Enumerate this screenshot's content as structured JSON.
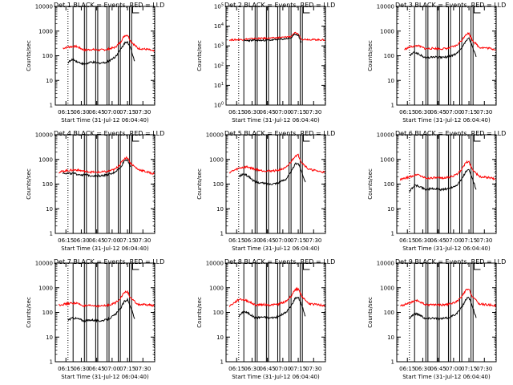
{
  "chart_data": [
    {
      "panel_title": "Det 1",
      "title": "Det 1 BLACK = Events, RED = LLD",
      "type": "line",
      "yscale": "log",
      "ylim": [
        1,
        10000
      ],
      "ylabel": "Counts/sec",
      "x_ticks": [
        "06:15",
        "06:30",
        "06:45",
        "07:00",
        "07:15",
        "07:30"
      ],
      "xlabel": "Start Time (31-Jul-12 06:04:40)",
      "y_ticks": [
        "1",
        "10",
        "100",
        "1000",
        "10000"
      ],
      "vlines": [
        "06:22",
        "06:33",
        "06:35",
        "06:44",
        "06:46",
        "06:55",
        "06:57",
        "07:06",
        "07:08",
        "07:17",
        "07:19"
      ],
      "dotted_vlines": [
        "06:17",
        "07:41"
      ],
      "series": [
        {
          "name": "BLACK = Events",
          "color": "#000000",
          "x": [
            "06:17",
            "06:22",
            "06:27",
            "06:33",
            "06:40",
            "06:47",
            "06:55",
            "07:03",
            "07:08",
            "07:12",
            "07:15",
            "07:18",
            "07:22"
          ],
          "values": [
            55,
            70,
            55,
            45,
            55,
            50,
            55,
            90,
            170,
            320,
            380,
            200,
            60
          ]
        },
        {
          "name": "RED = LLD",
          "color": "#ff0000",
          "x": [
            "06:12",
            "06:18",
            "06:25",
            "06:33",
            "06:40",
            "06:47",
            "06:55",
            "07:03",
            "07:08",
            "07:12",
            "07:15",
            "07:18",
            "07:25",
            "07:35",
            "07:41"
          ],
          "values": [
            200,
            230,
            240,
            170,
            180,
            170,
            180,
            220,
            350,
            650,
            700,
            400,
            200,
            180,
            150
          ]
        }
      ]
    },
    {
      "panel_title": "Det 2",
      "title": "Det 2 BLACK = Events, RED = LLD",
      "type": "line",
      "yscale": "log",
      "ylim": [
        1,
        100000
      ],
      "ylabel": "Counts/sec",
      "x_ticks": [
        "06:15",
        "06:30",
        "06:45",
        "07:00",
        "07:15",
        "07:30"
      ],
      "xlabel": "Start Time (31-Jul-12 06:04:40)",
      "y_ticks": [
        "10^0",
        "10^1",
        "10^2",
        "10^3",
        "10^4",
        "10^5"
      ],
      "vlines": [
        "06:22",
        "06:33",
        "06:35",
        "06:44",
        "06:46",
        "06:55",
        "06:57",
        "07:06",
        "07:08",
        "07:17",
        "07:19"
      ],
      "dotted_vlines": [
        "06:17",
        "07:41"
      ],
      "series": [
        {
          "name": "BLACK = Events",
          "color": "#000000",
          "x": [
            "06:22",
            "06:30",
            "06:40",
            "06:50",
            "07:00",
            "07:08",
            "07:12",
            "07:15",
            "07:18"
          ],
          "values": [
            1800,
            1900,
            1900,
            2000,
            2200,
            2500,
            4000,
            3500,
            1500
          ]
        },
        {
          "name": "RED = LLD",
          "color": "#ff0000",
          "x": [
            "06:08",
            "06:20",
            "06:30",
            "06:40",
            "06:50",
            "07:00",
            "07:08",
            "07:12",
            "07:15",
            "07:18",
            "07:28",
            "07:41"
          ],
          "values": [
            2000,
            2100,
            2300,
            2400,
            2500,
            2700,
            3000,
            4500,
            4000,
            2200,
            2100,
            2000
          ]
        }
      ]
    },
    {
      "panel_title": "Det 3",
      "title": "Det 3 BLACK = Events, RED = LLD",
      "type": "line",
      "yscale": "log",
      "ylim": [
        1,
        10000
      ],
      "ylabel": "Counts/sec",
      "x_ticks": [
        "06:15",
        "06:30",
        "06:45",
        "07:00",
        "07:15",
        "07:30"
      ],
      "xlabel": "Start Time (31-Jul-12 06:04:40)",
      "y_ticks": [
        "1",
        "10",
        "100",
        "1000",
        "10000"
      ],
      "vlines": [
        "06:22",
        "06:33",
        "06:35",
        "06:44",
        "06:46",
        "06:55",
        "06:57",
        "07:06",
        "07:08",
        "07:17",
        "07:19"
      ],
      "dotted_vlines": [
        "06:17",
        "07:41"
      ],
      "series": [
        {
          "name": "BLACK = Events",
          "color": "#000000",
          "x": [
            "06:17",
            "06:22",
            "06:27",
            "06:33",
            "06:40",
            "06:47",
            "06:55",
            "07:03",
            "07:08",
            "07:12",
            "07:15",
            "07:18",
            "07:22"
          ],
          "values": [
            100,
            140,
            110,
            80,
            90,
            85,
            90,
            120,
            200,
            400,
            500,
            250,
            90
          ]
        },
        {
          "name": "RED = LLD",
          "color": "#ff0000",
          "x": [
            "06:12",
            "06:18",
            "06:25",
            "06:33",
            "06:40",
            "06:47",
            "06:55",
            "07:03",
            "07:08",
            "07:12",
            "07:15",
            "07:18",
            "07:25",
            "07:35",
            "07:41"
          ],
          "values": [
            180,
            230,
            260,
            190,
            200,
            190,
            200,
            260,
            420,
            750,
            800,
            450,
            220,
            200,
            180
          ]
        }
      ]
    },
    {
      "panel_title": "Det 4",
      "title": "Det 4 BLACK = Events, RED = LLD",
      "type": "line",
      "yscale": "log",
      "ylim": [
        1,
        10000
      ],
      "ylabel": "Counts/sec",
      "x_ticks": [
        "06:15",
        "06:30",
        "06:45",
        "07:00",
        "07:15",
        "07:30"
      ],
      "xlabel": "Start Time (31-Jul-12 06:04:40)",
      "y_ticks": [
        "1",
        "10",
        "100",
        "1000",
        "10000"
      ],
      "vlines": [
        "06:22",
        "06:33",
        "06:35",
        "06:44",
        "06:46",
        "06:55",
        "06:57",
        "07:06",
        "07:08",
        "07:17",
        "07:19"
      ],
      "dotted_vlines": [
        "06:17",
        "07:41"
      ],
      "series": [
        {
          "name": "BLACK = Events",
          "color": "#000000",
          "x": [
            "06:12",
            "06:20",
            "06:30",
            "06:40",
            "06:50",
            "07:00",
            "07:08",
            "07:12",
            "07:15",
            "07:18"
          ],
          "values": [
            280,
            270,
            240,
            220,
            220,
            260,
            450,
            900,
            1000,
            500
          ]
        },
        {
          "name": "RED = LLD",
          "color": "#ff0000",
          "x": [
            "06:08",
            "06:15",
            "06:25",
            "06:35",
            "06:45",
            "06:55",
            "07:03",
            "07:08",
            "07:12",
            "07:15",
            "07:18",
            "07:25",
            "07:35",
            "07:41"
          ],
          "values": [
            300,
            350,
            380,
            320,
            300,
            320,
            400,
            650,
            1100,
            1200,
            700,
            400,
            300,
            260
          ]
        }
      ]
    },
    {
      "panel_title": "Det 5",
      "title": "Det 5 BLACK = Events, RED = LLD",
      "type": "line",
      "yscale": "log",
      "ylim": [
        1,
        10000
      ],
      "ylabel": "Counts/sec",
      "x_ticks": [
        "06:15",
        "06:30",
        "06:45",
        "07:00",
        "07:15",
        "07:30"
      ],
      "xlabel": "Start Time (31-Jul-12 06:04:40)",
      "y_ticks": [
        "1",
        "10",
        "100",
        "1000",
        "10000"
      ],
      "vlines": [
        "06:22",
        "06:33",
        "06:35",
        "06:44",
        "06:46",
        "06:55",
        "06:57",
        "07:06",
        "07:08",
        "07:17",
        "07:19"
      ],
      "dotted_vlines": [
        "06:17",
        "07:41"
      ],
      "series": [
        {
          "name": "BLACK = Events",
          "color": "#000000",
          "x": [
            "06:17",
            "06:22",
            "06:27",
            "06:33",
            "06:40",
            "06:47",
            "06:55",
            "07:03",
            "07:08",
            "07:12",
            "07:15",
            "07:18",
            "07:22"
          ],
          "values": [
            200,
            260,
            200,
            120,
            110,
            100,
            110,
            160,
            300,
            650,
            700,
            350,
            120
          ]
        },
        {
          "name": "RED = LLD",
          "color": "#ff0000",
          "x": [
            "06:08",
            "06:18",
            "06:25",
            "06:33",
            "06:40",
            "06:47",
            "06:55",
            "07:03",
            "07:08",
            "07:12",
            "07:15",
            "07:18",
            "07:25",
            "07:35",
            "07:41"
          ],
          "values": [
            300,
            450,
            500,
            400,
            350,
            340,
            360,
            450,
            800,
            1400,
            1500,
            800,
            400,
            330,
            300
          ]
        }
      ]
    },
    {
      "panel_title": "Det 6",
      "title": "Det 6 BLACK = Events, RED = LLD",
      "type": "line",
      "yscale": "log",
      "ylim": [
        1,
        10000
      ],
      "ylabel": "Counts/sec",
      "x_ticks": [
        "06:15",
        "06:30",
        "06:45",
        "07:00",
        "07:15",
        "07:30"
      ],
      "xlabel": "Start Time (31-Jul-12 06:04:40)",
      "y_ticks": [
        "1",
        "10",
        "100",
        "1000",
        "10000"
      ],
      "vlines": [
        "06:22",
        "06:33",
        "06:35",
        "06:44",
        "06:46",
        "06:55",
        "06:57",
        "07:06",
        "07:08",
        "07:17",
        "07:19"
      ],
      "dotted_vlines": [
        "06:17",
        "07:41"
      ],
      "series": [
        {
          "name": "BLACK = Events",
          "color": "#000000",
          "x": [
            "06:17",
            "06:22",
            "06:27",
            "06:33",
            "06:40",
            "06:47",
            "06:55",
            "07:03",
            "07:08",
            "07:12",
            "07:15",
            "07:18",
            "07:22"
          ],
          "values": [
            50,
            90,
            80,
            60,
            65,
            60,
            65,
            90,
            160,
            320,
            380,
            180,
            60
          ]
        },
        {
          "name": "RED = LLD",
          "color": "#ff0000",
          "x": [
            "06:08",
            "06:18",
            "06:25",
            "06:33",
            "06:40",
            "06:47",
            "06:55",
            "07:03",
            "07:08",
            "07:12",
            "07:15",
            "07:18",
            "07:25",
            "07:35",
            "07:41"
          ],
          "values": [
            150,
            200,
            250,
            170,
            180,
            175,
            185,
            240,
            400,
            750,
            800,
            420,
            200,
            180,
            160
          ]
        }
      ]
    },
    {
      "panel_title": "Det 7",
      "title": "Det 7 BLACK = Events, RED = LLD",
      "type": "line",
      "yscale": "log",
      "ylim": [
        1,
        10000
      ],
      "ylabel": "Counts/sec",
      "x_ticks": [
        "06:15",
        "06:30",
        "06:45",
        "07:00",
        "07:15",
        "07:30"
      ],
      "xlabel": "Start Time (31-Jul-12 06:04:40)",
      "y_ticks": [
        "1",
        "10",
        "100",
        "1000",
        "10000"
      ],
      "vlines": [
        "06:22",
        "06:33",
        "06:35",
        "06:44",
        "06:46",
        "06:55",
        "06:57",
        "07:06",
        "07:08",
        "07:17",
        "07:19"
      ],
      "dotted_vlines": [
        "06:17",
        "07:41"
      ],
      "series": [
        {
          "name": "BLACK = Events",
          "color": "#000000",
          "x": [
            "06:17",
            "06:22",
            "06:27",
            "06:33",
            "06:40",
            "06:47",
            "06:55",
            "07:03",
            "07:08",
            "07:12",
            "07:15",
            "07:18",
            "07:22"
          ],
          "values": [
            50,
            60,
            55,
            45,
            50,
            45,
            50,
            80,
            140,
            280,
            330,
            170,
            55
          ]
        },
        {
          "name": "RED = LLD",
          "color": "#ff0000",
          "x": [
            "06:08",
            "06:18",
            "06:25",
            "06:33",
            "06:40",
            "06:47",
            "06:55",
            "07:03",
            "07:08",
            "07:12",
            "07:15",
            "07:18",
            "07:25",
            "07:35",
            "07:41"
          ],
          "values": [
            200,
            230,
            240,
            180,
            190,
            180,
            190,
            240,
            380,
            650,
            700,
            380,
            210,
            200,
            190
          ]
        }
      ]
    },
    {
      "panel_title": "Det 8",
      "title": "Det 8 BLACK = Events, RED = LLD",
      "type": "line",
      "yscale": "log",
      "ylim": [
        1,
        10000
      ],
      "ylabel": "Counts/sec",
      "x_ticks": [
        "06:15",
        "06:30",
        "06:45",
        "07:00",
        "07:15",
        "07:30"
      ],
      "xlabel": "Start Time (31-Jul-12 06:04:40)",
      "y_ticks": [
        "1",
        "10",
        "100",
        "1000",
        "10000"
      ],
      "vlines": [
        "06:22",
        "06:33",
        "06:35",
        "06:44",
        "06:46",
        "06:55",
        "06:57",
        "07:06",
        "07:08",
        "07:17",
        "07:19"
      ],
      "dotted_vlines": [
        "06:17",
        "07:41"
      ],
      "series": [
        {
          "name": "BLACK = Events",
          "color": "#000000",
          "x": [
            "06:17",
            "06:22",
            "06:27",
            "06:33",
            "06:40",
            "06:47",
            "06:55",
            "07:03",
            "07:08",
            "07:12",
            "07:15",
            "07:18",
            "07:22"
          ],
          "values": [
            70,
            110,
            90,
            60,
            65,
            60,
            65,
            100,
            180,
            380,
            420,
            220,
            70
          ]
        },
        {
          "name": "RED = LLD",
          "color": "#ff0000",
          "x": [
            "06:08",
            "06:18",
            "06:25",
            "06:33",
            "06:40",
            "06:47",
            "06:55",
            "07:03",
            "07:08",
            "07:12",
            "07:15",
            "07:18",
            "07:25",
            "07:35",
            "07:41"
          ],
          "values": [
            180,
            350,
            300,
            200,
            210,
            200,
            210,
            280,
            450,
            850,
            900,
            480,
            230,
            200,
            190
          ]
        }
      ]
    },
    {
      "panel_title": "Det 9",
      "title": "Det 9 BLACK = Events, RED = LLD",
      "type": "line",
      "yscale": "log",
      "ylim": [
        1,
        10000
      ],
      "ylabel": "Counts/sec",
      "x_ticks": [
        "06:15",
        "06:30",
        "06:45",
        "07:00",
        "07:15",
        "07:30"
      ],
      "xlabel": "Start Time (31-Jul-12 06:04:40)",
      "y_ticks": [
        "1",
        "10",
        "100",
        "1000",
        "10000"
      ],
      "vlines": [
        "06:22",
        "06:33",
        "06:35",
        "06:44",
        "06:46",
        "06:55",
        "06:57",
        "07:06",
        "07:08",
        "07:17",
        "07:19"
      ],
      "dotted_vlines": [
        "06:17",
        "07:41"
      ],
      "series": [
        {
          "name": "BLACK = Events",
          "color": "#000000",
          "x": [
            "06:17",
            "06:22",
            "06:27",
            "06:33",
            "06:40",
            "06:47",
            "06:55",
            "07:03",
            "07:08",
            "07:12",
            "07:15",
            "07:18",
            "07:22"
          ],
          "values": [
            60,
            90,
            80,
            55,
            60,
            55,
            60,
            90,
            160,
            340,
            400,
            200,
            60
          ]
        },
        {
          "name": "RED = LLD",
          "color": "#ff0000",
          "x": [
            "06:08",
            "06:18",
            "06:25",
            "06:33",
            "06:40",
            "06:47",
            "06:55",
            "07:03",
            "07:08",
            "07:12",
            "07:15",
            "07:18",
            "07:25",
            "07:35",
            "07:41"
          ],
          "values": [
            180,
            250,
            300,
            200,
            210,
            200,
            210,
            270,
            430,
            800,
            850,
            460,
            220,
            200,
            190
          ]
        }
      ]
    }
  ]
}
